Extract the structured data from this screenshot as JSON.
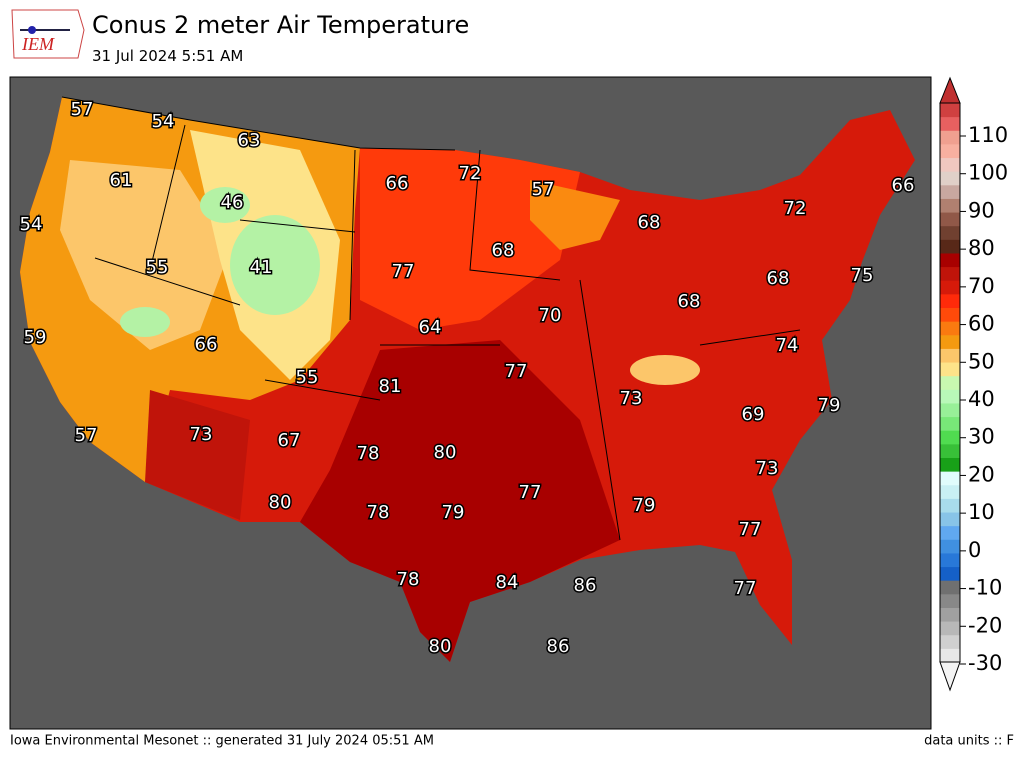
{
  "header": {
    "logo": "IEM",
    "title": "Conus 2 meter Air Temperature",
    "subtitle": "31 Jul 2024 5:51 AM"
  },
  "map": {
    "labels": [
      57,
      54,
      63,
      61,
      46,
      54,
      66,
      72,
      57,
      68,
      72,
      66,
      41,
      55,
      77,
      68,
      68,
      75,
      59,
      66,
      64,
      70,
      68,
      74,
      55,
      81,
      77,
      73,
      79,
      57,
      73,
      67,
      78,
      80,
      69,
      73,
      77,
      79,
      80,
      78,
      79,
      77,
      78,
      84,
      86,
      77,
      80,
      86
    ]
  },
  "colorbar": {
    "ticks": [
      110,
      100,
      90,
      80,
      70,
      60,
      50,
      40,
      30,
      20,
      10,
      0,
      -10,
      -20,
      -30
    ]
  },
  "footer": {
    "left": "Iowa Environmental Mesonet :: generated 31 July 2024 05:51 AM",
    "right": "data units :: F"
  }
}
